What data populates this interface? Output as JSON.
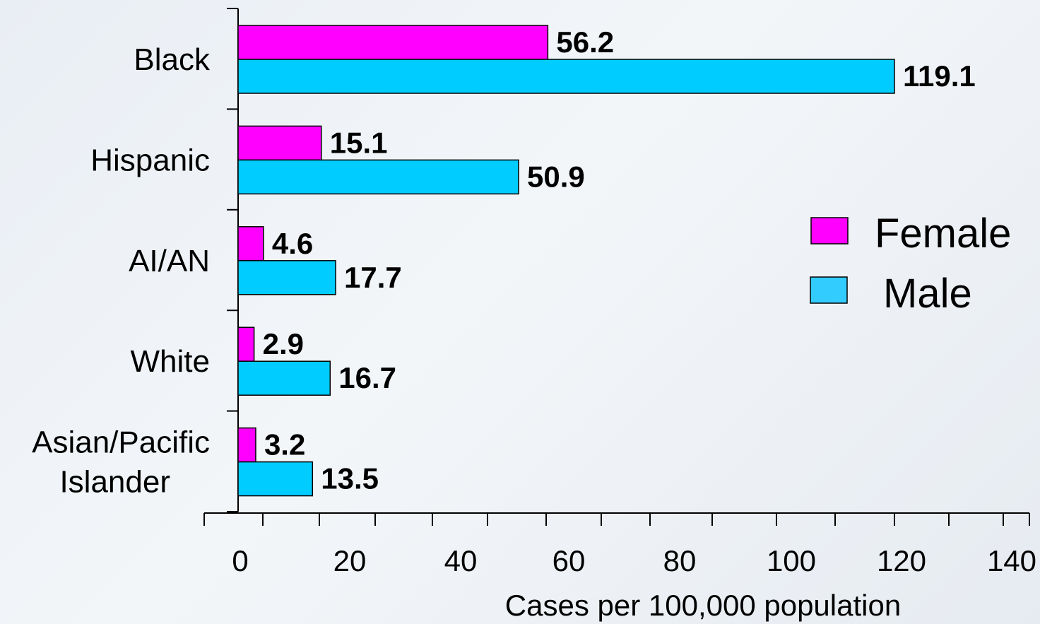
{
  "chart_data": {
    "type": "bar",
    "orientation": "horizontal",
    "categories": [
      "Black",
      "Hispanic",
      "AI/AN",
      "White",
      "Asian/Pacific Islander"
    ],
    "category_lines": [
      [
        "Black"
      ],
      [
        "Hispanic"
      ],
      [
        "AI/AN"
      ],
      [
        "White"
      ],
      [
        "Asian/Pacific",
        "Islander"
      ]
    ],
    "series": [
      {
        "name": "Female",
        "values": [
          56.2,
          15.1,
          4.6,
          2.9,
          3.2
        ],
        "labels": [
          "56.2",
          "15.1",
          "4.6",
          "2.9",
          "3.2"
        ],
        "color": "#ff00ff"
      },
      {
        "name": "Male",
        "values": [
          119.1,
          50.9,
          17.7,
          16.7,
          13.5
        ],
        "labels": [
          "119.1",
          "50.9",
          "17.7",
          "16.7",
          "13.5"
        ],
        "color": "#00ccff"
      }
    ],
    "xlabel": "Cases per 100,000 population",
    "xlim": [
      0,
      140
    ],
    "xticks": [
      "0",
      "20",
      "40",
      "60",
      "80",
      "100",
      "120",
      "140"
    ],
    "grid": false,
    "legend": "right",
    "legend_entries": [
      {
        "name": "Female",
        "color": "#ff00ff"
      },
      {
        "name": "Male",
        "color": "#33ccff"
      }
    ]
  }
}
